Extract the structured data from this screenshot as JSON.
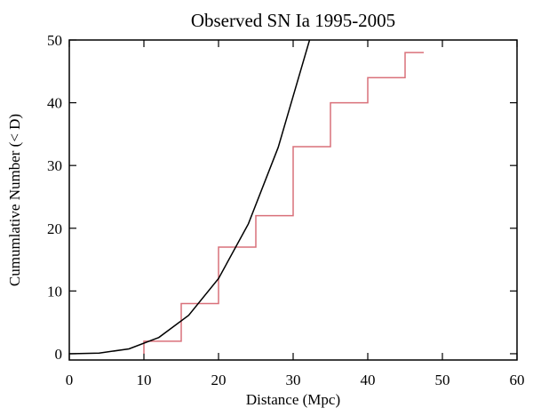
{
  "chart_data": {
    "type": "line",
    "title": "Observed SN Ia  1995-2005",
    "x_label": "Distance (Mpc)",
    "y_label": "Cumumlative Number (< D)",
    "xlim": [
      0,
      60
    ],
    "ylim": [
      -1,
      50
    ],
    "xticks": [
      0,
      10,
      20,
      30,
      40,
      50,
      60
    ],
    "yticks": [
      0,
      10,
      20,
      30,
      40,
      50
    ],
    "series": [
      {
        "color": "#d9707a",
        "step": true,
        "x": [
          10,
          10,
          15,
          20,
          25,
          30,
          35,
          40,
          45,
          47.5
        ],
        "values": [
          0,
          2,
          8,
          17,
          22,
          33,
          40,
          44,
          48,
          48
        ]
      },
      {
        "color": "#000000",
        "step": false,
        "x": [
          0,
          4,
          8,
          12,
          16,
          20,
          24,
          28,
          32.2
        ],
        "values": [
          0,
          0.1,
          0.77,
          2.59,
          6.13,
          11.98,
          20.7,
          32.9,
          50
        ]
      }
    ]
  }
}
